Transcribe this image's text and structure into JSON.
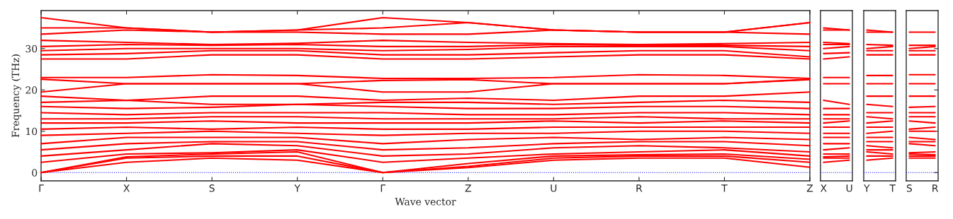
{
  "chart_data": [
    {
      "type": "line",
      "xlabel": "Wave vector",
      "ylabel": "Frequency (THz)",
      "categories": [
        "Γ",
        "X",
        "S",
        "Y",
        "Γ",
        "Z",
        "U",
        "R",
        "T",
        "Z"
      ],
      "ylim": [
        -2,
        39.2
      ],
      "yticks": [
        0,
        10,
        20,
        30
      ],
      "grid": false,
      "ref_lines": [
        {
          "axis": "y",
          "value": 0,
          "color": "#0000ff",
          "line_style": "dotted"
        }
      ],
      "series": [
        {
          "color": "#ff0000",
          "values": [
            0,
            2.5,
            3.5,
            3.0,
            0,
            1.2,
            3.0,
            3.5,
            3.5,
            1.3
          ]
        },
        {
          "color": "#ff0000",
          "values": [
            0,
            3.5,
            4.0,
            4.0,
            0,
            1.5,
            3.5,
            4.0,
            4.0,
            2.5
          ]
        },
        {
          "color": "#ff0000",
          "values": [
            0,
            3.8,
            4.5,
            5.0,
            0,
            2.2,
            4.0,
            4.3,
            4.5,
            3.2
          ]
        },
        {
          "color": "#ff0000",
          "values": [
            2.5,
            4.5,
            4.8,
            5.5,
            2.5,
            3.5,
            4.5,
            5.0,
            5.5,
            4.0
          ]
        },
        {
          "color": "#ff0000",
          "values": [
            4.0,
            5.5,
            7.0,
            6.5,
            4.0,
            4.5,
            6.0,
            6.5,
            6.0,
            5.0
          ]
        },
        {
          "color": "#ff0000",
          "values": [
            5.5,
            7.0,
            7.5,
            7.5,
            5.5,
            6.0,
            7.0,
            7.5,
            7.5,
            6.5
          ]
        },
        {
          "color": "#ff0000",
          "values": [
            7.0,
            8.5,
            8.5,
            8.5,
            7.0,
            8.0,
            8.5,
            8.0,
            8.5,
            8.0
          ]
        },
        {
          "color": "#ff0000",
          "values": [
            9.0,
            9.5,
            10.0,
            9.5,
            9.0,
            9.5,
            9.5,
            10.0,
            10.0,
            9.5
          ]
        },
        {
          "color": "#ff0000",
          "values": [
            10.5,
            11.0,
            10.5,
            11.0,
            10.5,
            10.5,
            11.0,
            11.0,
            11.0,
            11.0
          ]
        },
        {
          "color": "#ff0000",
          "values": [
            12.0,
            12.0,
            12.5,
            12.0,
            12.0,
            12.0,
            12.5,
            12.0,
            12.5,
            12.0
          ]
        },
        {
          "color": "#ff0000",
          "values": [
            13.0,
            13.0,
            13.5,
            13.5,
            13.0,
            13.0,
            13.0,
            13.5,
            13.0,
            13.0
          ]
        },
        {
          "color": "#ff0000",
          "values": [
            14.5,
            14.0,
            14.5,
            14.5,
            14.5,
            14.0,
            14.0,
            14.5,
            14.5,
            14.0
          ]
        },
        {
          "color": "#ff0000",
          "values": [
            16.0,
            15.5,
            15.8,
            16.5,
            16.0,
            15.5,
            15.5,
            16.0,
            16.0,
            15.5
          ]
        },
        {
          "color": "#ff0000",
          "values": [
            17.0,
            17.5,
            16.5,
            16.5,
            17.0,
            17.0,
            16.5,
            17.0,
            17.5,
            17.0
          ]
        },
        {
          "color": "#ff0000",
          "values": [
            18.5,
            17.5,
            18.5,
            18.5,
            17.5,
            18.0,
            17.5,
            18.5,
            18.5,
            19.5
          ]
        },
        {
          "color": "#ff0000",
          "values": [
            19.5,
            21.5,
            21.5,
            21.5,
            19.5,
            19.5,
            21.5,
            21.5,
            21.5,
            22.5
          ]
        },
        {
          "color": "#ff0000",
          "values": [
            22.6,
            21.5,
            21.5,
            21.5,
            22.3,
            22.5,
            21.5,
            21.5,
            21.5,
            22.6
          ]
        },
        {
          "color": "#ff0000",
          "values": [
            23.0,
            23.0,
            23.7,
            23.5,
            22.8,
            22.8,
            23.0,
            23.7,
            23.5,
            22.8
          ]
        },
        {
          "color": "#ff0000",
          "values": [
            27.5,
            27.5,
            28.5,
            28.5,
            27.5,
            27.5,
            28.0,
            28.5,
            28.5,
            27.5
          ]
        },
        {
          "color": "#ff0000",
          "values": [
            28.5,
            28.8,
            29.5,
            29.5,
            28.5,
            28.5,
            29.0,
            29.5,
            29.5,
            28.0
          ]
        },
        {
          "color": "#ff0000",
          "values": [
            29.5,
            30.0,
            30.0,
            30.0,
            29.5,
            29.8,
            30.5,
            30.5,
            30.5,
            29.5
          ]
        },
        {
          "color": "#ff0000",
          "values": [
            30.5,
            31.0,
            30.8,
            31.0,
            30.5,
            30.5,
            31.0,
            30.8,
            30.8,
            30.5
          ]
        },
        {
          "color": "#ff0000",
          "values": [
            32.0,
            31.5,
            31.0,
            31.3,
            32.0,
            31.5,
            31.2,
            31.0,
            31.2,
            31.5
          ]
        },
        {
          "color": "#ff0000",
          "values": [
            33.5,
            34.5,
            34.0,
            34.0,
            33.5,
            33.5,
            34.5,
            34.0,
            34.0,
            33.5
          ]
        },
        {
          "color": "#ff0000",
          "values": [
            35.0,
            35.0,
            34.0,
            34.5,
            35.0,
            36.3,
            34.5,
            34.0,
            34.0,
            36.3
          ]
        },
        {
          "color": "#ff0000",
          "values": [
            37.5,
            35.0,
            34.0,
            34.5,
            37.5,
            36.3,
            34.5,
            34.0,
            34.0,
            36.3
          ]
        }
      ]
    },
    {
      "type": "line",
      "categories": [
        "X",
        "U"
      ],
      "ylim": [
        -2,
        39.2
      ],
      "yticks": [
        0,
        10,
        20,
        30
      ],
      "tick_labels": "x",
      "grid": false,
      "ref_lines": [
        {
          "axis": "y",
          "value": 0,
          "color": "#0000ff",
          "line_style": "dotted"
        }
      ],
      "series": [
        {
          "color": "#ff0000",
          "values": [
            2.5,
            3.0
          ]
        },
        {
          "color": "#ff0000",
          "values": [
            3.5,
            3.5
          ]
        },
        {
          "color": "#ff0000",
          "values": [
            3.8,
            4.0
          ]
        },
        {
          "color": "#ff0000",
          "values": [
            4.5,
            4.5
          ]
        },
        {
          "color": "#ff0000",
          "values": [
            5.5,
            6.0
          ]
        },
        {
          "color": "#ff0000",
          "values": [
            7.0,
            7.0
          ]
        },
        {
          "color": "#ff0000",
          "values": [
            8.5,
            8.5
          ]
        },
        {
          "color": "#ff0000",
          "values": [
            9.5,
            9.5
          ]
        },
        {
          "color": "#ff0000",
          "values": [
            11.0,
            11.0
          ]
        },
        {
          "color": "#ff0000",
          "values": [
            12.0,
            12.5
          ]
        },
        {
          "color": "#ff0000",
          "values": [
            13.0,
            13.0
          ]
        },
        {
          "color": "#ff0000",
          "values": [
            14.0,
            14.0
          ]
        },
        {
          "color": "#ff0000",
          "values": [
            15.5,
            15.5
          ]
        },
        {
          "color": "#ff0000",
          "values": [
            17.5,
            16.5
          ]
        },
        {
          "color": "#ff0000",
          "values": [
            21.5,
            21.5
          ]
        },
        {
          "color": "#ff0000",
          "values": [
            23.0,
            23.0
          ]
        },
        {
          "color": "#ff0000",
          "values": [
            27.5,
            28.0
          ]
        },
        {
          "color": "#ff0000",
          "values": [
            28.8,
            29.0
          ]
        },
        {
          "color": "#ff0000",
          "values": [
            30.0,
            30.5
          ]
        },
        {
          "color": "#ff0000",
          "values": [
            31.0,
            31.0
          ]
        },
        {
          "color": "#ff0000",
          "values": [
            31.5,
            31.2
          ]
        },
        {
          "color": "#ff0000",
          "values": [
            34.5,
            34.5
          ]
        },
        {
          "color": "#ff0000",
          "values": [
            35.0,
            34.5
          ]
        }
      ]
    },
    {
      "type": "line",
      "categories": [
        "Y",
        "T"
      ],
      "ylim": [
        -2,
        39.2
      ],
      "yticks": [
        0,
        10,
        20,
        30
      ],
      "tick_labels": "x",
      "grid": false,
      "ref_lines": [
        {
          "axis": "y",
          "value": 0,
          "color": "#0000ff",
          "line_style": "dotted"
        }
      ],
      "series": [
        {
          "color": "#ff0000",
          "values": [
            3.0,
            3.5
          ]
        },
        {
          "color": "#ff0000",
          "values": [
            4.0,
            4.0
          ]
        },
        {
          "color": "#ff0000",
          "values": [
            5.0,
            4.5
          ]
        },
        {
          "color": "#ff0000",
          "values": [
            5.5,
            5.5
          ]
        },
        {
          "color": "#ff0000",
          "values": [
            6.5,
            6.0
          ]
        },
        {
          "color": "#ff0000",
          "values": [
            7.5,
            7.5
          ]
        },
        {
          "color": "#ff0000",
          "values": [
            8.5,
            8.5
          ]
        },
        {
          "color": "#ff0000",
          "values": [
            9.5,
            10.0
          ]
        },
        {
          "color": "#ff0000",
          "values": [
            11.0,
            11.0
          ]
        },
        {
          "color": "#ff0000",
          "values": [
            12.0,
            12.5
          ]
        },
        {
          "color": "#ff0000",
          "values": [
            13.5,
            13.0
          ]
        },
        {
          "color": "#ff0000",
          "values": [
            14.5,
            14.5
          ]
        },
        {
          "color": "#ff0000",
          "values": [
            16.5,
            16.0
          ]
        },
        {
          "color": "#ff0000",
          "values": [
            18.5,
            18.5
          ]
        },
        {
          "color": "#ff0000",
          "values": [
            21.5,
            21.5
          ]
        },
        {
          "color": "#ff0000",
          "values": [
            23.5,
            23.5
          ]
        },
        {
          "color": "#ff0000",
          "values": [
            28.5,
            28.5
          ]
        },
        {
          "color": "#ff0000",
          "values": [
            29.5,
            29.5
          ]
        },
        {
          "color": "#ff0000",
          "values": [
            30.0,
            30.5
          ]
        },
        {
          "color": "#ff0000",
          "values": [
            31.0,
            30.8
          ]
        },
        {
          "color": "#ff0000",
          "values": [
            34.0,
            34.0
          ]
        },
        {
          "color": "#ff0000",
          "values": [
            34.5,
            34.0
          ]
        }
      ]
    },
    {
      "type": "line",
      "categories": [
        "S",
        "R"
      ],
      "ylim": [
        -2,
        39.2
      ],
      "yticks": [
        0,
        10,
        20,
        30
      ],
      "tick_labels": "x",
      "grid": false,
      "ref_lines": [
        {
          "axis": "y",
          "value": 0,
          "color": "#0000ff",
          "line_style": "dotted"
        }
      ],
      "series": [
        {
          "color": "#ff0000",
          "values": [
            3.5,
            3.5
          ]
        },
        {
          "color": "#ff0000",
          "values": [
            4.0,
            4.0
          ]
        },
        {
          "color": "#ff0000",
          "values": [
            4.5,
            4.3
          ]
        },
        {
          "color": "#ff0000",
          "values": [
            4.8,
            5.0
          ]
        },
        {
          "color": "#ff0000",
          "values": [
            7.0,
            6.5
          ]
        },
        {
          "color": "#ff0000",
          "values": [
            7.5,
            7.5
          ]
        },
        {
          "color": "#ff0000",
          "values": [
            8.5,
            8.0
          ]
        },
        {
          "color": "#ff0000",
          "values": [
            10.0,
            10.0
          ]
        },
        {
          "color": "#ff0000",
          "values": [
            10.5,
            11.0
          ]
        },
        {
          "color": "#ff0000",
          "values": [
            12.5,
            12.0
          ]
        },
        {
          "color": "#ff0000",
          "values": [
            13.5,
            13.5
          ]
        },
        {
          "color": "#ff0000",
          "values": [
            14.5,
            14.5
          ]
        },
        {
          "color": "#ff0000",
          "values": [
            15.8,
            16.0
          ]
        },
        {
          "color": "#ff0000",
          "values": [
            18.5,
            18.5
          ]
        },
        {
          "color": "#ff0000",
          "values": [
            21.5,
            21.5
          ]
        },
        {
          "color": "#ff0000",
          "values": [
            23.7,
            23.7
          ]
        },
        {
          "color": "#ff0000",
          "values": [
            28.5,
            28.5
          ]
        },
        {
          "color": "#ff0000",
          "values": [
            29.5,
            29.5
          ]
        },
        {
          "color": "#ff0000",
          "values": [
            30.0,
            30.5
          ]
        },
        {
          "color": "#ff0000",
          "values": [
            30.8,
            30.8
          ]
        },
        {
          "color": "#ff0000",
          "values": [
            34.0,
            34.0
          ]
        }
      ]
    }
  ]
}
